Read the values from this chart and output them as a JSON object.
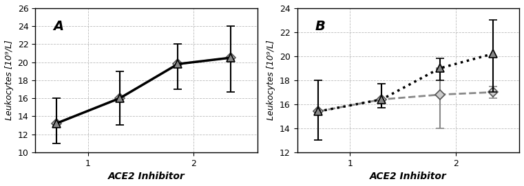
{
  "panel_A": {
    "label": "A",
    "ylim": [
      10,
      26
    ],
    "yticks": [
      10,
      12,
      14,
      16,
      18,
      20,
      22,
      24,
      26
    ],
    "xlim": [
      0.5,
      2.6
    ],
    "xticks": [
      1,
      2
    ],
    "ylabel": "Leukocytes [10⁹/L]",
    "xlabel": "ACE2 Inhibitor",
    "series1": {
      "x": [
        0.7,
        1.3,
        1.85,
        2.35
      ],
      "y": [
        13.2,
        16.0,
        19.8,
        20.5
      ],
      "yerr_low": [
        2.2,
        3.0,
        2.8,
        3.8
      ],
      "yerr_high": [
        2.8,
        3.0,
        2.2,
        3.5
      ],
      "marker": "D",
      "linestyle": "--",
      "color": "#888888",
      "linewidth": 2.0,
      "markersize": 7
    },
    "series2": {
      "x": [
        0.7,
        1.3,
        1.85,
        2.35
      ],
      "y": [
        13.2,
        16.0,
        19.8,
        20.5
      ],
      "yerr_low": [
        2.2,
        3.0,
        2.8,
        3.8
      ],
      "yerr_high": [
        2.8,
        3.0,
        2.2,
        3.5
      ],
      "marker": "^",
      "linestyle": "-",
      "color": "#000000",
      "linewidth": 2.5,
      "markersize": 8
    }
  },
  "panel_B": {
    "label": "B",
    "ylim": [
      12,
      24
    ],
    "yticks": [
      12,
      14,
      16,
      18,
      20,
      22,
      24
    ],
    "xlim": [
      0.5,
      2.6
    ],
    "xticks": [
      1,
      2
    ],
    "ylabel": "Leukocytes [10⁹/L]",
    "xlabel": "ACE2 Inhibitor",
    "series1": {
      "x": [
        0.7,
        1.3,
        1.85,
        2.35
      ],
      "y": [
        15.4,
        16.4,
        16.8,
        17.0
      ],
      "yerr_low": [
        2.4,
        0.7,
        2.8,
        0.5
      ],
      "yerr_high": [
        2.6,
        1.3,
        2.2,
        0.5
      ],
      "marker": "D",
      "linestyle": "--",
      "color": "#888888",
      "linewidth": 2.0,
      "markersize": 7
    },
    "series2": {
      "x": [
        0.7,
        1.3,
        1.85,
        2.35
      ],
      "y": [
        15.4,
        16.4,
        19.0,
        20.2
      ],
      "yerr_low": [
        2.4,
        0.7,
        1.0,
        3.2
      ],
      "yerr_high": [
        2.6,
        1.3,
        0.8,
        2.8
      ],
      "marker": "^",
      "linestyle": ":",
      "color": "#000000",
      "linewidth": 2.5,
      "markersize": 8
    }
  }
}
